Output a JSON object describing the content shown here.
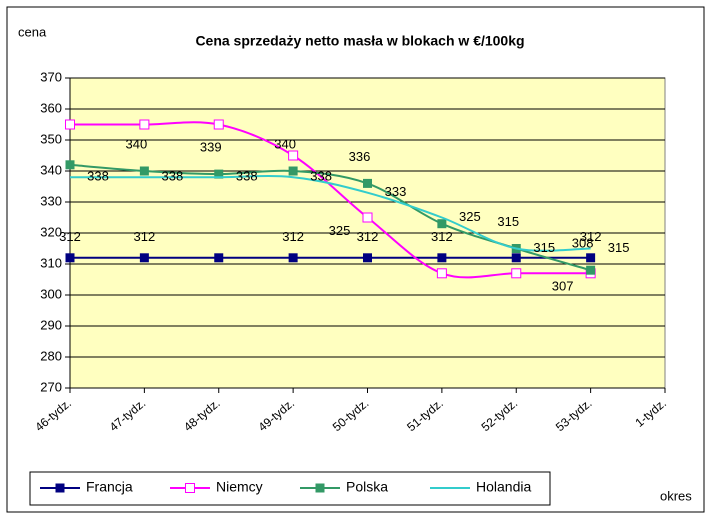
{
  "chart_data": {
    "type": "line",
    "title": "Cena sprzedaży netto masła w blokach w €/100kg",
    "y_label": "cena",
    "x_label": "okres",
    "categories": [
      "46-tydz.",
      "47-tydz.",
      "48-tydz.",
      "49-tydz.",
      "50-tydz.",
      "51-tydz.",
      "52-tydz.",
      "53-tydz.",
      "1-tydz."
    ],
    "ylim": [
      270,
      370
    ],
    "yticks": [
      270,
      280,
      290,
      300,
      310,
      320,
      330,
      340,
      350,
      360,
      370
    ],
    "grid": true,
    "legend": "bottom",
    "series": [
      {
        "name": "Francja",
        "color": "#000080",
        "marker": "filled-square",
        "smooth": false,
        "values": [
          312,
          312,
          312,
          312,
          312,
          312,
          312,
          312,
          null
        ],
        "value_labels": [
          "312",
          "312",
          null,
          "312",
          "312",
          "312",
          null,
          "312",
          null
        ]
      },
      {
        "name": "Niemcy",
        "color": "#ff00ff",
        "marker": "hollow-square",
        "smooth": true,
        "values": [
          355,
          355,
          355,
          345,
          325,
          307,
          307,
          307,
          null
        ],
        "value_labels": [
          null,
          null,
          null,
          null,
          "325",
          null,
          null,
          "307",
          null
        ]
      },
      {
        "name": "Polska",
        "color": "#339966",
        "marker": "filled-square",
        "smooth": true,
        "values": [
          342,
          340,
          339,
          340,
          336,
          323,
          315,
          308,
          null
        ],
        "value_labels": [
          null,
          "340",
          "339",
          "340",
          "336",
          null,
          "315",
          "308",
          null
        ]
      },
      {
        "name": "Holandia",
        "color": "#33cccc",
        "marker": "none",
        "smooth": true,
        "values": [
          338,
          338,
          338,
          338,
          333,
          325,
          315,
          315,
          null
        ],
        "value_labels": [
          "338",
          "338",
          "338",
          "338",
          "333",
          "325",
          "315",
          "315",
          null
        ]
      }
    ]
  }
}
